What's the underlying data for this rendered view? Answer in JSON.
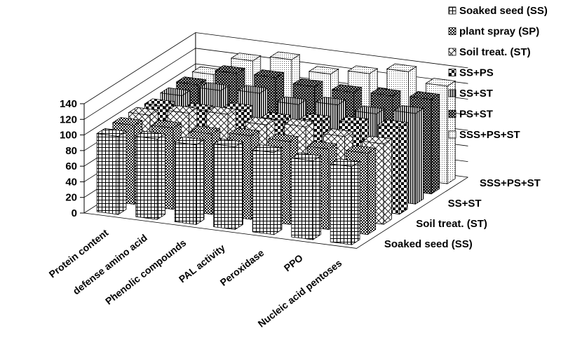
{
  "chart_data": {
    "type": "bar",
    "variant": "3d-column",
    "title": "",
    "xlabel": "",
    "ylabel": "",
    "ylim": [
      0,
      140
    ],
    "yticks": [
      0,
      20,
      40,
      60,
      80,
      100,
      120,
      140
    ],
    "grid": true,
    "legend_position": "top-right",
    "categories": [
      "Protein content",
      "defense amino acid",
      "Phenolic compounds",
      "PAL activity",
      "Peroxidase",
      "PPO",
      "Nucleic acid pentoses"
    ],
    "depth_axis_labels": [
      "Soaked seed (SS)",
      "Soil treat. (ST)",
      "SS+ST",
      "SSS+PS+ST"
    ],
    "series": [
      {
        "name": "Soaked seed (SS)",
        "pattern": "grid",
        "values": [
          100,
          103,
          102,
          106,
          105,
          101,
          100
        ]
      },
      {
        "name": "plant spray (SP)",
        "pattern": "check",
        "values": [
          101,
          104,
          103,
          107,
          106,
          103,
          104
        ]
      },
      {
        "name": "Soil treat. (ST)",
        "pattern": "diag",
        "values": [
          101,
          110,
          115,
          108,
          112,
          106,
          103
        ]
      },
      {
        "name": "SS+PS",
        "pattern": "bigcheck",
        "values": [
          99,
          100,
          107,
          101,
          106,
          109,
          111
        ]
      },
      {
        "name": "SS+ST",
        "pattern": "vstripe",
        "values": [
          100,
          113,
          116,
          108,
          114,
          109,
          116
        ]
      },
      {
        "name": "PS+ST",
        "pattern": "darkcheck",
        "values": [
          101,
          122,
          123,
          118,
          117,
          119,
          121
        ]
      },
      {
        "name": "SSS+PS+ST",
        "pattern": "dots",
        "values": [
          101,
          125,
          133,
          121,
          128,
          137,
          125
        ]
      }
    ]
  }
}
